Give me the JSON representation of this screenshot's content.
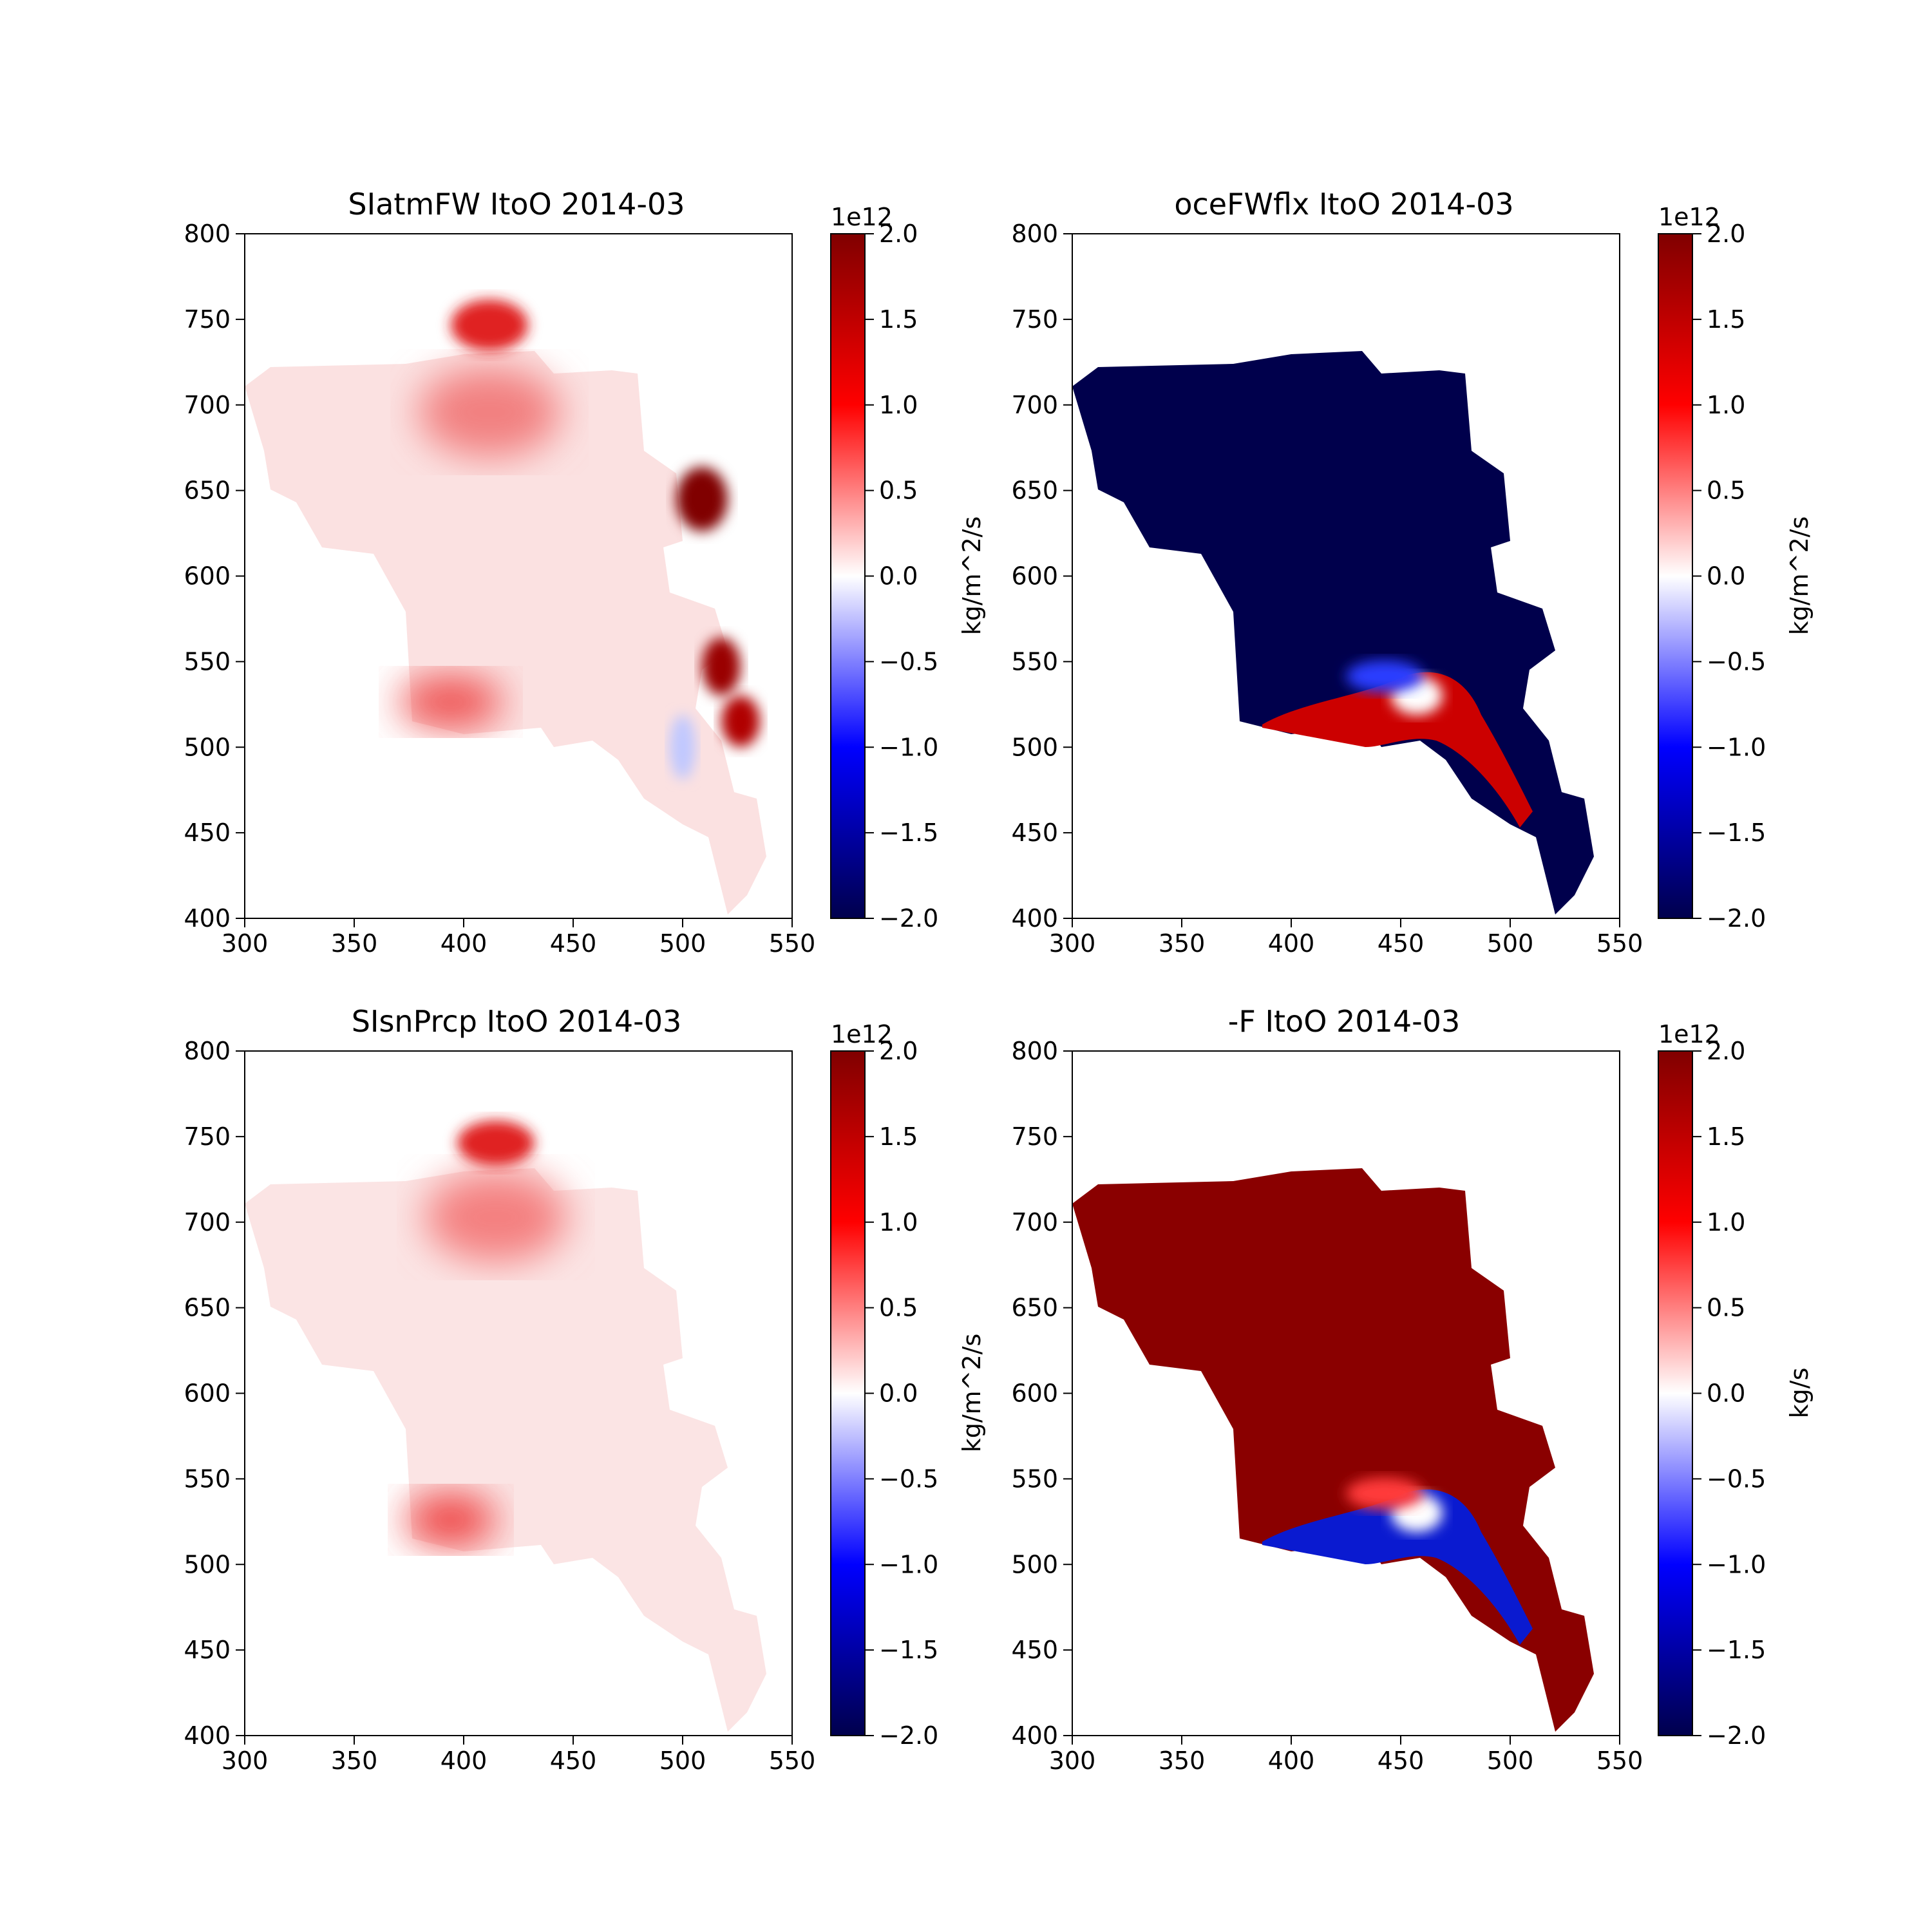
{
  "colors": {
    "low": "#00004c",
    "mid": "#ffffff",
    "high": "#800000",
    "red": "#ff0000",
    "blue": "#0000ff"
  },
  "chart_data": [
    {
      "type": "heatmap",
      "title": "SIatmFW ItoO 2014-03",
      "xlim": [
        300,
        550
      ],
      "ylim": [
        400,
        800
      ],
      "x_ticks": [
        "300",
        "350",
        "400",
        "450",
        "500",
        "550"
      ],
      "y_ticks": [
        "400",
        "450",
        "500",
        "550",
        "600",
        "650",
        "700",
        "750",
        "800"
      ],
      "clim": [
        -2.0,
        2.0
      ],
      "colorbar_ticks": [
        "−2.0",
        "−1.5",
        "−1.0",
        "−0.5",
        "0.0",
        "0.5",
        "1.0",
        "1.5",
        "2.0"
      ],
      "colorbar_offset": "1e12",
      "colorbar_label": "kg/m^2/s",
      "field_pattern": "mostly weak positive (light red), strong positive near x≈510–520 at y≈640 and y≈500–545, slight negative along southern coast"
    },
    {
      "type": "heatmap",
      "title": "oceFWflx ItoO 2014-03",
      "xlim": [
        300,
        550
      ],
      "ylim": [
        400,
        800
      ],
      "x_ticks": [
        "300",
        "350",
        "400",
        "450",
        "500",
        "550"
      ],
      "y_ticks": [
        "400",
        "450",
        "500",
        "550",
        "600",
        "650",
        "700",
        "750",
        "800"
      ],
      "clim": [
        -2.0,
        2.0
      ],
      "colorbar_ticks": [
        "−2.0",
        "−1.5",
        "−1.0",
        "−0.5",
        "0.0",
        "0.5",
        "1.0",
        "1.5",
        "2.0"
      ],
      "colorbar_offset": "1e12",
      "colorbar_label": "kg/m^2/s",
      "field_pattern": "saturated negative (dark blue) over most of the domain, positive (red) band along southern coast y≈500–550"
    },
    {
      "type": "heatmap",
      "title": "SIsnPrcp ItoO 2014-03",
      "xlim": [
        300,
        550
      ],
      "ylim": [
        400,
        800
      ],
      "x_ticks": [
        "300",
        "350",
        "400",
        "450",
        "500",
        "550"
      ],
      "y_ticks": [
        "400",
        "450",
        "500",
        "550",
        "600",
        "650",
        "700",
        "750",
        "800"
      ],
      "clim": [
        -2.0,
        2.0
      ],
      "colorbar_ticks": [
        "−2.0",
        "−1.5",
        "−1.0",
        "−0.5",
        "0.0",
        "0.5",
        "1.0",
        "1.5",
        "2.0"
      ],
      "colorbar_offset": "1e12",
      "colorbar_label": "kg/m^2/s",
      "field_pattern": "weak positive (light red) everywhere, stronger near northern edge and southwest corner"
    },
    {
      "type": "heatmap",
      "title": "-F ItoO 2014-03",
      "xlim": [
        300,
        550
      ],
      "ylim": [
        400,
        800
      ],
      "x_ticks": [
        "300",
        "350",
        "400",
        "450",
        "500",
        "550"
      ],
      "y_ticks": [
        "400",
        "450",
        "500",
        "550",
        "600",
        "650",
        "700",
        "750",
        "800"
      ],
      "clim": [
        -2.0,
        2.0
      ],
      "colorbar_ticks": [
        "−2.0",
        "−1.5",
        "−1.0",
        "−0.5",
        "0.0",
        "0.5",
        "1.0",
        "1.5",
        "2.0"
      ],
      "colorbar_offset": "1e12",
      "colorbar_label": "kg/s",
      "field_pattern": "saturated positive (dark red) over most of the domain, negative (blue) band along southern coast y≈500–550"
    }
  ]
}
